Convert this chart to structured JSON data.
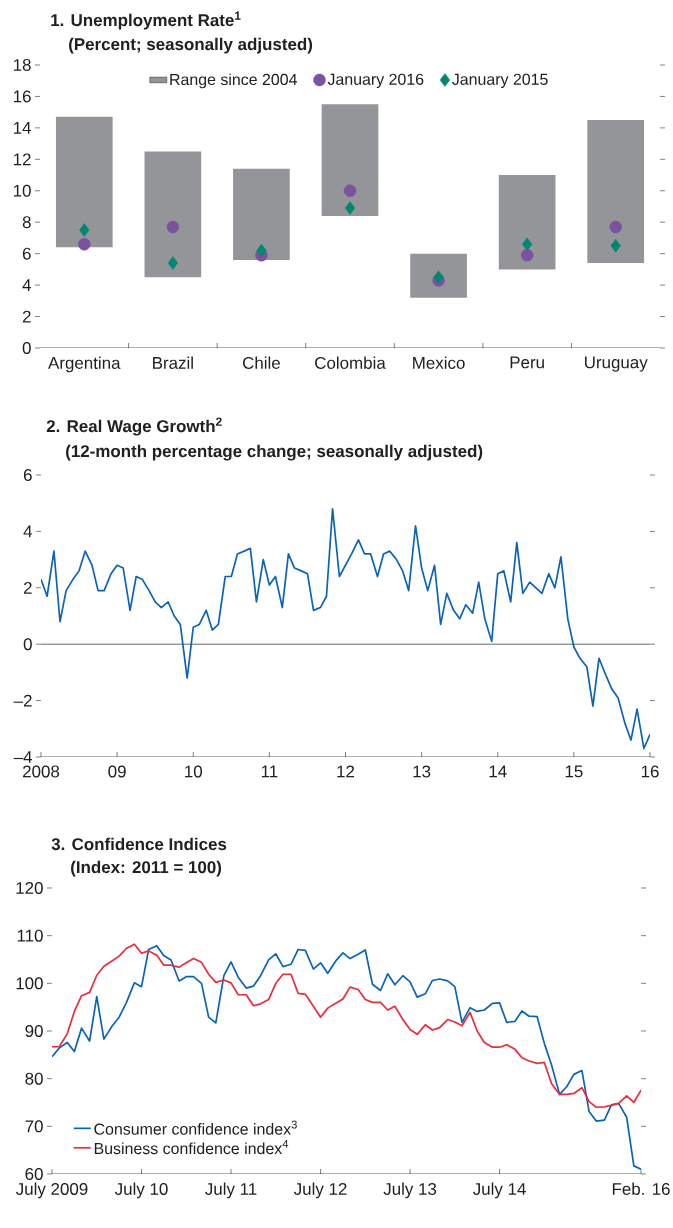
{
  "chart_data": [
    {
      "type": "bar",
      "title": "1. Unemployment Rate$^{1}$",
      "subtitle": "(Percent; seasonally adjusted)",
      "categories": [
        "Argentina",
        "Brazil",
        "Chile",
        "Colombia",
        "Mexico",
        "Peru",
        "Uruguay"
      ],
      "series": [
        {
          "name": "Range since 2004",
          "type": "bar",
          "color": "#939598",
          "base": [
            6.4,
            4.5,
            5.6,
            8.4,
            3.2,
            5.0,
            5.4
          ],
          "values": [
            8.3,
            8.0,
            5.8,
            7.1,
            2.8,
            6.0,
            9.1
          ]
        },
        {
          "name": "January 2016",
          "type": "scatter",
          "marker": "circle",
          "color": "#7b529e",
          "values": [
            6.6,
            7.7,
            5.9,
            10.0,
            4.3,
            5.9,
            7.7
          ]
        },
        {
          "name": "January 2015",
          "type": "scatter",
          "marker": "diamond",
          "color": "#00876f",
          "values": [
            7.5,
            5.4,
            6.2,
            8.9,
            4.5,
            6.6,
            6.5
          ]
        }
      ],
      "ylim": [
        0,
        18
      ],
      "yticks": [
        0,
        2,
        4,
        6,
        8,
        10,
        12,
        14,
        16,
        18
      ],
      "legend": "top"
    },
    {
      "type": "line",
      "title": "2. Real Wage Growth$^{2}$",
      "subtitle": "(12-month percentage change; seasonally adjusted)",
      "x": [
        "2008-01",
        "2008-02",
        "2008-03",
        "2008-04",
        "2008-05",
        "2008-06",
        "2008-07",
        "2008-08",
        "2008-09",
        "2008-10",
        "2008-11",
        "2008-12",
        "2009-01",
        "2009-02",
        "2009-03",
        "2009-04",
        "2009-05",
        "2009-06",
        "2009-07",
        "2009-08",
        "2009-09",
        "2009-10",
        "2009-11",
        "2009-12",
        "2010-01",
        "2010-02",
        "2010-03",
        "2010-04",
        "2010-05",
        "2010-06",
        "2010-07",
        "2010-08",
        "2010-09",
        "2010-10",
        "2010-11",
        "2010-12",
        "2011-01",
        "2011-02",
        "2011-03",
        "2011-04",
        "2011-05",
        "2011-06",
        "2011-07",
        "2011-08",
        "2011-09",
        "2011-10",
        "2011-11",
        "2011-12",
        "2012-01",
        "2012-02",
        "2012-03",
        "2012-04",
        "2012-05",
        "2012-06",
        "2012-07",
        "2012-08",
        "2012-09",
        "2012-10",
        "2012-11",
        "2012-12",
        "2013-01",
        "2013-02",
        "2013-03",
        "2013-04",
        "2013-05",
        "2013-06",
        "2013-07",
        "2013-08",
        "2013-09",
        "2013-10",
        "2013-11",
        "2013-12",
        "2014-01",
        "2014-02",
        "2014-03",
        "2014-04",
        "2014-05",
        "2014-06",
        "2014-07",
        "2014-08",
        "2014-09",
        "2014-10",
        "2014-11",
        "2014-12",
        "2015-01",
        "2015-02",
        "2015-03",
        "2015-04",
        "2015-05",
        "2015-06",
        "2015-07",
        "2015-08",
        "2015-09",
        "2015-10",
        "2015-11",
        "2015-12",
        "2016-01"
      ],
      "series": [
        {
          "color": "#0b63b8",
          "values": [
            2.3,
            1.7,
            3.3,
            0.8,
            1.9,
            2.3,
            2.6,
            3.3,
            2.8,
            1.9,
            1.9,
            2.5,
            2.8,
            2.7,
            1.2,
            2.4,
            2.3,
            1.9,
            1.5,
            1.3,
            1.5,
            1.0,
            0.7,
            -1.2,
            0.6,
            0.7,
            1.2,
            0.5,
            0.7,
            2.4,
            2.4,
            3.2,
            3.3,
            3.4,
            1.5,
            3.0,
            2.1,
            2.4,
            1.3,
            3.2,
            2.7,
            2.6,
            2.5,
            1.2,
            1.3,
            1.7,
            4.8,
            2.4,
            2.8,
            3.2,
            3.7,
            3.2,
            3.2,
            2.4,
            3.2,
            3.3,
            3.0,
            2.6,
            1.9,
            4.2,
            2.7,
            1.9,
            2.8,
            0.7,
            1.8,
            1.2,
            0.9,
            1.4,
            1.1,
            2.2,
            0.9,
            0.1,
            2.5,
            2.6,
            1.5,
            3.6,
            1.8,
            2.2,
            2.0,
            1.8,
            2.5,
            2.0,
            3.1,
            0.9,
            -0.1,
            -0.5,
            -0.8,
            -2.2,
            -0.5,
            -1.1,
            -1.6,
            -1.9,
            -2.8,
            -3.4,
            -2.3,
            -3.7,
            -3.2
          ]
        }
      ],
      "xlim": [
        "2008-01",
        "2016-01"
      ],
      "xticks": [
        {
          "value": "2008-01",
          "label": "2008"
        },
        {
          "value": "2009-01",
          "label": "09"
        },
        {
          "value": "2010-01",
          "label": "10"
        },
        {
          "value": "2011-01",
          "label": "11"
        },
        {
          "value": "2012-01",
          "label": "12"
        },
        {
          "value": "2013-01",
          "label": "13"
        },
        {
          "value": "2014-01",
          "label": "14"
        },
        {
          "value": "2015-01",
          "label": "15"
        },
        {
          "value": "2016-01",
          "label": "16"
        }
      ],
      "ylim": [
        -4,
        6
      ],
      "yticks": [
        {
          "value": -4,
          "label": "–4"
        },
        {
          "value": -2,
          "label": "–2"
        },
        0,
        2,
        4,
        6
      ],
      "ref_lines": [
        {
          "axis": "y",
          "value": 0,
          "color": "#000000"
        }
      ]
    },
    {
      "type": "line",
      "title": "3. Confidence Indices",
      "subtitle": "(Index: 2011 = 100)",
      "x": [
        "2009-07",
        "2009-08",
        "2009-09",
        "2009-10",
        "2009-11",
        "2009-12",
        "2010-01",
        "2010-02",
        "2010-03",
        "2010-04",
        "2010-05",
        "2010-06",
        "2010-07",
        "2010-08",
        "2010-09",
        "2010-10",
        "2010-11",
        "2010-12",
        "2011-01",
        "2011-02",
        "2011-03",
        "2011-04",
        "2011-05",
        "2011-06",
        "2011-07",
        "2011-08",
        "2011-09",
        "2011-10",
        "2011-11",
        "2011-12",
        "2012-01",
        "2012-02",
        "2012-03",
        "2012-04",
        "2012-05",
        "2012-06",
        "2012-07",
        "2012-08",
        "2012-09",
        "2012-10",
        "2012-11",
        "2012-12",
        "2013-01",
        "2013-02",
        "2013-03",
        "2013-04",
        "2013-05",
        "2013-06",
        "2013-07",
        "2013-08",
        "2013-09",
        "2013-10",
        "2013-11",
        "2013-12",
        "2014-01",
        "2014-02",
        "2014-03",
        "2014-04",
        "2014-05",
        "2014-06",
        "2014-07",
        "2014-08",
        "2014-09",
        "2014-10",
        "2014-11",
        "2014-12",
        "2015-01",
        "2015-02",
        "2015-03",
        "2015-04",
        "2015-05",
        "2015-06",
        "2015-07",
        "2015-08",
        "2015-09",
        "2015-10",
        "2015-11",
        "2015-12",
        "2016-01",
        "2016-02"
      ],
      "series": [
        {
          "name": "Consumer confidence index$^{3}$",
          "color": "#0b63b8",
          "values": [
            84.6,
            86.4,
            87.6,
            85.7,
            90.6,
            87.9,
            97.2,
            88.3,
            91.0,
            92.9,
            95.9,
            100.1,
            99.3,
            107.1,
            107.9,
            105.8,
            104.9,
            100.5,
            101.4,
            101.4,
            100.0,
            92.9,
            91.7,
            101.6,
            104.5,
            101.3,
            99.0,
            99.4,
            101.6,
            104.9,
            106.2,
            103.5,
            104.0,
            107.1,
            106.9,
            103.0,
            104.3,
            102.1,
            104.7,
            106.4,
            105.2,
            106.1,
            107.0,
            99.8,
            98.5,
            102.0,
            99.7,
            101.6,
            100.3,
            97.1,
            97.8,
            100.6,
            100.9,
            100.5,
            99.3,
            91.8,
            94.9,
            94.1,
            94.4,
            95.8,
            95.9,
            91.8,
            92.0,
            94.2,
            93.1,
            93.0,
            87.4,
            82.9,
            76.7,
            78.3,
            80.9,
            81.7,
            73.1,
            71.1,
            71.3,
            74.5,
            74.8,
            71.9,
            61.7,
            61.0
          ]
        },
        {
          "name": "Business confidence index$^{4}$",
          "color": "#ee2b3b",
          "values": [
            86.7,
            86.7,
            89.4,
            94.1,
            97.4,
            98.1,
            101.7,
            103.6,
            104.7,
            105.7,
            107.3,
            108.2,
            106.3,
            106.8,
            105.9,
            103.8,
            103.8,
            103.4,
            104.3,
            105.2,
            104.4,
            101.9,
            100.2,
            100.7,
            100.1,
            97.6,
            97.6,
            95.3,
            95.7,
            96.6,
            100.0,
            101.9,
            101.9,
            97.9,
            97.7,
            95.2,
            92.9,
            94.8,
            95.8,
            96.7,
            99.2,
            98.7,
            96.6,
            96.0,
            96.0,
            94.4,
            95.2,
            92.4,
            90.3,
            89.3,
            91.3,
            90.2,
            90.7,
            92.4,
            91.9,
            91.1,
            93.9,
            90.0,
            87.6,
            86.6,
            86.6,
            87.1,
            86.2,
            84.4,
            83.7,
            83.2,
            83.4,
            79.0,
            76.7,
            76.7,
            76.9,
            78.1,
            75.2,
            74.0,
            74.1,
            74.4,
            74.8,
            76.4,
            75.0,
            77.6
          ]
        }
      ],
      "xlim": [
        "2009-07",
        "2016-02"
      ],
      "xticks": [
        {
          "value": "2009-07",
          "label": "July 2009"
        },
        {
          "value": "2010-07",
          "label": "July 10"
        },
        {
          "value": "2011-07",
          "label": "July 11"
        },
        {
          "value": "2012-07",
          "label": "July 12"
        },
        {
          "value": "2013-07",
          "label": "July 13"
        },
        {
          "value": "2014-07",
          "label": "July 14"
        },
        {
          "value": "2016-02",
          "label": "Feb. 16"
        }
      ],
      "ylim": [
        60,
        120
      ],
      "yticks": [
        60,
        70,
        80,
        90,
        100,
        110,
        120
      ],
      "legend": "bottom left"
    }
  ]
}
